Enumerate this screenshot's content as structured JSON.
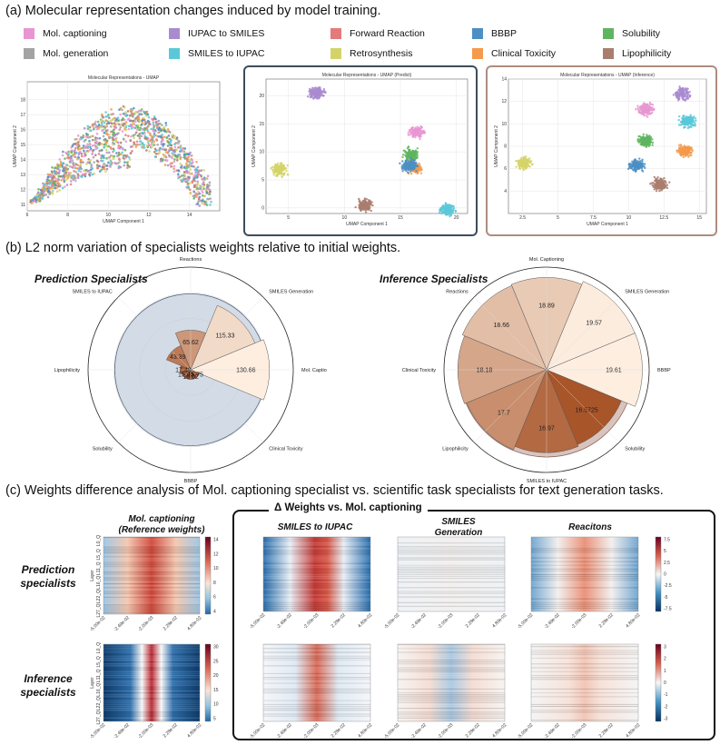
{
  "section_a": {
    "title": "(a) Molecular representation changes induced by model training."
  },
  "section_b": {
    "title": "(b) L2 norm variation of specialists weights relative to initial weights."
  },
  "section_c": {
    "title": "(c) Weights difference analysis of Mol. captioning specialist vs. scientific task specialists for text generation tasks."
  },
  "colors": {
    "mol_captioning": "#e896d2",
    "mol_generation": "#a3a3a3",
    "iupac_to_smiles": "#a98bd0",
    "smiles_to_iupac": "#5bc8d8",
    "forward_reaction": "#e47a7a",
    "retrosynthesis": "#d4d36a",
    "bbbp": "#4b8fc4",
    "clinical_toxicity": "#f59a4a",
    "solubility": "#5fb55f",
    "lipophilicity": "#a97e6e",
    "predict_frame": "#3d4d5c",
    "inference_frame": "#b08c80"
  },
  "legend": [
    {
      "label": "Mol. captioning",
      "color": "#e896d2"
    },
    {
      "label": "IUPAC to SMILES",
      "color": "#a98bd0"
    },
    {
      "label": "Forward Reaction",
      "color": "#e47a7a"
    },
    {
      "label": "BBBP",
      "color": "#4b8fc4"
    },
    {
      "label": "Solubility",
      "color": "#5fb55f"
    },
    {
      "label": "Mol. generation",
      "color": "#a3a3a3"
    },
    {
      "label": "SMILES to IUPAC",
      "color": "#5bc8d8"
    },
    {
      "label": "Retrosynthesis",
      "color": "#d4d36a"
    },
    {
      "label": "Clinical Toxicity",
      "color": "#f59a4a"
    },
    {
      "label": "Lipophilicity",
      "color": "#a97e6e"
    }
  ],
  "chart_data": [
    {
      "type": "scatter",
      "title": "Molecular Representations - UMAP",
      "xlabel": "UMAP Component 1",
      "ylabel": "UMAP Component 2",
      "xlim": [
        6,
        15.5
      ],
      "ylim": [
        10.6,
        19.2
      ],
      "xticks": [
        "6",
        "8",
        "10",
        "12",
        "14"
      ],
      "yticks": [
        "11",
        "12",
        "13",
        "14",
        "15",
        "16",
        "17",
        "18"
      ],
      "clusters": [
        {
          "name": "mixed",
          "center": [
            10.5,
            16.0
          ],
          "spread": [
            2.4,
            1.4
          ]
        }
      ]
    },
    {
      "type": "scatter",
      "title": "Molecular Representations - UMAP (Predict)",
      "xlabel": "UMAP Component 1",
      "ylabel": "UMAP Component 2",
      "xlim": [
        3,
        21
      ],
      "ylim": [
        -1,
        23
      ],
      "xticks": [
        "5",
        "10",
        "15",
        "20"
      ],
      "yticks": [
        "0",
        "5",
        "10",
        "15",
        "20"
      ],
      "clusters": [
        {
          "name": "IUPAC to SMILES",
          "center": [
            7.5,
            20.5
          ]
        },
        {
          "name": "Mol. captioning",
          "center": [
            16.5,
            13.5
          ]
        },
        {
          "name": "Solubility",
          "center": [
            16.0,
            9.5
          ]
        },
        {
          "name": "Clinical Toxicity",
          "center": [
            16.2,
            7.2
          ]
        },
        {
          "name": "BBBP",
          "center": [
            15.8,
            7.6
          ]
        },
        {
          "name": "Retrosynthesis",
          "center": [
            4.2,
            6.8
          ]
        },
        {
          "name": "Lipophilicity",
          "center": [
            11.8,
            0.5
          ]
        },
        {
          "name": "SMILES to IUPAC",
          "center": [
            19.2,
            -0.3
          ]
        }
      ]
    },
    {
      "type": "scatter",
      "title": "Molecular Representations - UMAP (Inference)",
      "xlabel": "UMAP Component 1",
      "ylabel": "UMAP Component 2",
      "xlim": [
        1.5,
        15.5
      ],
      "ylim": [
        2,
        14
      ],
      "xticks": [
        "2.5",
        "5",
        "7.5",
        "10",
        "12.5",
        "15"
      ],
      "yticks": [
        "4",
        "6",
        "8",
        "10",
        "12",
        "14"
      ],
      "clusters": [
        {
          "name": "Retrosynthesis",
          "center": [
            2.6,
            6.5
          ]
        },
        {
          "name": "IUPAC to SMILES",
          "center": [
            13.8,
            12.7
          ]
        },
        {
          "name": "Mol. captioning",
          "center": [
            11.2,
            11.3
          ]
        },
        {
          "name": "SMILES to IUPAC",
          "center": [
            14.2,
            10.2
          ]
        },
        {
          "name": "Solubility",
          "center": [
            11.2,
            8.5
          ]
        },
        {
          "name": "Clinical Toxicity",
          "center": [
            14.0,
            7.6
          ]
        },
        {
          "name": "BBBP",
          "center": [
            10.6,
            6.3
          ]
        },
        {
          "name": "Lipophilicity",
          "center": [
            12.2,
            4.6
          ]
        }
      ]
    },
    {
      "type": "bar",
      "subtype": "polar",
      "title": "Prediction Specialists",
      "categories": [
        "Reactions",
        "SMILES Generation",
        "Mol. Captioning",
        "Clinical Toxicity",
        "BBBP",
        "Solubility",
        "Lipophilicity",
        "SMILES to IUPAC"
      ],
      "values": [
        65.62,
        115.33,
        130.66,
        15.75,
        16.02,
        15.93,
        17.49,
        43.39
      ],
      "rmax": 170
    },
    {
      "type": "bar",
      "subtype": "polar",
      "title": "Inference Specialists",
      "categories": [
        "Mol. Captioning",
        "SMILES Generation",
        "BBBP",
        "Solubility",
        "SMILES to IUPAC",
        "Lipophilicity",
        "Clinical Toxicity",
        "Reactions"
      ],
      "values": [
        18.89,
        19.57,
        19.61,
        16.5725,
        16.97,
        17.7,
        18.18,
        18.66
      ],
      "rmax": 21
    },
    {
      "type": "heatmap",
      "title": "Mol. captioning (Reference weights)",
      "panels": [
        "Prediction specialists",
        "Inference specialists"
      ],
      "xticks": [
        "-5.00e-02",
        "-2.49e-02",
        "-2.00e-03",
        "2.28e-02",
        "4.80e-02"
      ],
      "yticks": [
        "L0_Q",
        "L5_Q",
        "L11_Q",
        "L16_Q",
        "L22_Q",
        "L27_Q"
      ],
      "ylabel": "Layer",
      "colorbars": [
        [
          4,
          6,
          8,
          10,
          12,
          14
        ],
        [
          5,
          10,
          15,
          20,
          25,
          30
        ]
      ]
    },
    {
      "type": "heatmap",
      "title": "Δ Weights vs. Mol. captioning",
      "columns": [
        "SMILES to IUPAC",
        "SMILES Generation",
        "Reacitons"
      ],
      "xticks": [
        "-5.00e-02",
        "-2.49e-02",
        "-2.00e-03",
        "2.28e-02",
        "4.80e-02"
      ],
      "colorbars": [
        [
          7.5,
          5.0,
          2.5,
          0.0,
          -2.5,
          -5.0,
          -7.5
        ],
        [
          3,
          2,
          1,
          0,
          -1,
          -2,
          -3
        ]
      ]
    }
  ],
  "labels_b": {
    "prediction": "Prediction Specialists",
    "inference": "Inference Specialists"
  },
  "labels_c": {
    "ref_title": "Mol. captioning\n(Reference weights)",
    "delta_title": "Δ Weights vs. Mol. captioning",
    "col1": "SMILES to IUPAC",
    "col2": "SMILES\nGeneration",
    "col3": "Reacitons",
    "row1": "Prediction\nspecialists",
    "row2": "Inference\nspecialists"
  }
}
